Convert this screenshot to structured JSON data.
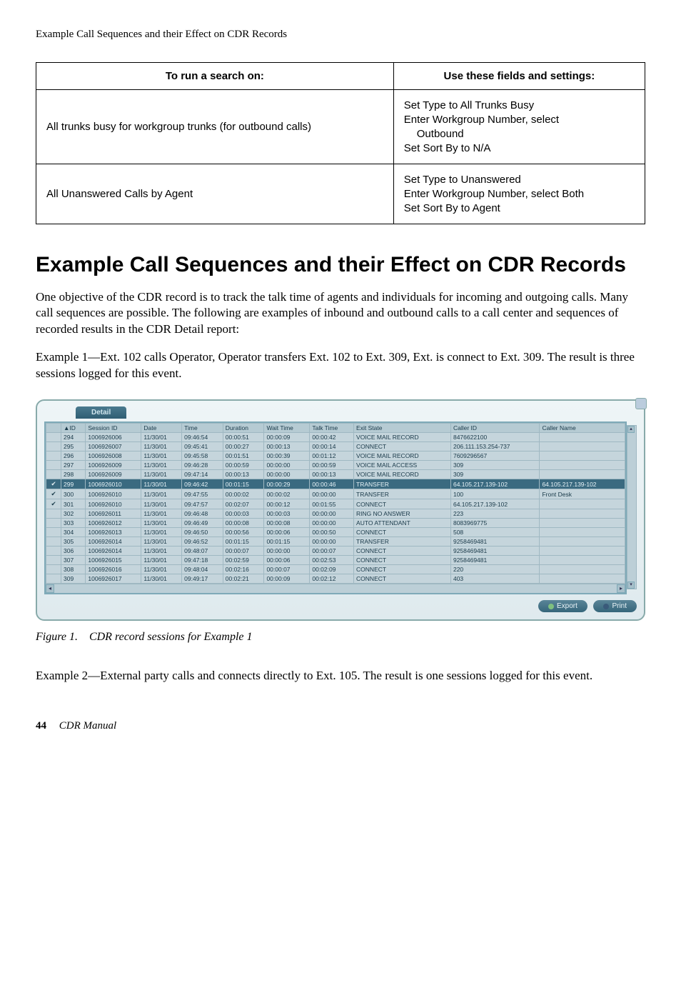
{
  "running_head": "Example Call Sequences and their Effect on CDR Records",
  "settings_table": {
    "headers": [
      "To run a search on:",
      "Use these fields and settings:"
    ],
    "rows": [
      {
        "c1": "All trunks busy for workgroup trunks (for outbound calls)",
        "c2_lines": [
          {
            "t": "Set Type to All Trunks Busy",
            "indent": false
          },
          {
            "t": "Enter Workgroup Number, select",
            "indent": false
          },
          {
            "t": "Outbound",
            "indent": true
          },
          {
            "t": "Set Sort By to N/A",
            "indent": false
          }
        ]
      },
      {
        "c1": "All Unanswered Calls by Agent",
        "c2_lines": [
          {
            "t": "Set Type to Unanswered",
            "indent": false
          },
          {
            "t": "Enter Workgroup Number, select Both",
            "indent": false
          },
          {
            "t": "Set Sort By to Agent",
            "indent": false
          }
        ]
      }
    ]
  },
  "section_title": "Example Call Sequences and their Effect on CDR Records",
  "para1": "One objective of the CDR record is to track the talk time of agents and individuals for incoming and outgoing calls. Many call sequences are possible. The following are examples of inbound and outbound calls to a call center and sequences of recorded results in the CDR Detail report:",
  "para2": "Example 1—Ext. 102 calls Operator, Operator transfers Ext. 102 to Ext. 309, Ext. is connect to Ext. 309. The result is three sessions logged for this event.",
  "detail": {
    "tab": "Detail",
    "export": "Export",
    "print": "Print",
    "cols": [
      "",
      "▲ID",
      "Session ID",
      "Date",
      "Time",
      "Duration",
      "Wait Time",
      "Talk Time",
      "Exit State",
      "Caller ID",
      "Caller Name"
    ],
    "rows": [
      {
        "chk": "",
        "id": "294",
        "sid": "1006926006",
        "date": "11/30/01",
        "time": "09:46:54",
        "dur": "00:00:51",
        "wait": "00:00:09",
        "talk": "00:00:42",
        "exit": "VOICE MAIL RECORD",
        "cid": "8476622100",
        "cname": "",
        "hl": false
      },
      {
        "chk": "",
        "id": "295",
        "sid": "1006926007",
        "date": "11/30/01",
        "time": "09:45:41",
        "dur": "00:00:27",
        "wait": "00:00:13",
        "talk": "00:00:14",
        "exit": "CONNECT",
        "cid": "206.111.153.254-737",
        "cname": "",
        "hl": false
      },
      {
        "chk": "",
        "id": "296",
        "sid": "1006926008",
        "date": "11/30/01",
        "time": "09:45:58",
        "dur": "00:01:51",
        "wait": "00:00:39",
        "talk": "00:01:12",
        "exit": "VOICE MAIL RECORD",
        "cid": "7609296567",
        "cname": "",
        "hl": false
      },
      {
        "chk": "",
        "id": "297",
        "sid": "1006926009",
        "date": "11/30/01",
        "time": "09:46:28",
        "dur": "00:00:59",
        "wait": "00:00:00",
        "talk": "00:00:59",
        "exit": "VOICE MAIL ACCESS",
        "cid": "309",
        "cname": "",
        "hl": false
      },
      {
        "chk": "",
        "id": "298",
        "sid": "1006926009",
        "date": "11/30/01",
        "time": "09:47:14",
        "dur": "00:00:13",
        "wait": "00:00:00",
        "talk": "00:00:13",
        "exit": "VOICE MAIL RECORD",
        "cid": "309",
        "cname": "",
        "hl": false
      },
      {
        "chk": "✔",
        "id": "299",
        "sid": "1006926010",
        "date": "11/30/01",
        "time": "09:46:42",
        "dur": "00:01:15",
        "wait": "00:00:29",
        "talk": "00:00:46",
        "exit": "TRANSFER",
        "cid": "64.105.217.139-102",
        "cname": "64.105.217.139-102",
        "hl": true,
        "ht": true
      },
      {
        "chk": "✔",
        "id": "300",
        "sid": "1006926010",
        "date": "11/30/01",
        "time": "09:47:55",
        "dur": "00:00:02",
        "wait": "00:00:02",
        "talk": "00:00:00",
        "exit": "TRANSFER",
        "cid": "100",
        "cname": "Front Desk",
        "hl": false
      },
      {
        "chk": "✔",
        "id": "301",
        "sid": "1006926010",
        "date": "11/30/01",
        "time": "09:47:57",
        "dur": "00:02:07",
        "wait": "00:00:12",
        "talk": "00:01:55",
        "exit": "CONNECT",
        "cid": "64.105.217.139-102",
        "cname": "",
        "hl": false,
        "hb": true
      },
      {
        "chk": "",
        "id": "302",
        "sid": "1006926011",
        "date": "11/30/01",
        "time": "09:46:48",
        "dur": "00:00:03",
        "wait": "00:00:03",
        "talk": "00:00:00",
        "exit": "RING NO ANSWER",
        "cid": "223",
        "cname": "",
        "hl": false
      },
      {
        "chk": "",
        "id": "303",
        "sid": "1006926012",
        "date": "11/30/01",
        "time": "09:46:49",
        "dur": "00:00:08",
        "wait": "00:00:08",
        "talk": "00:00:00",
        "exit": "AUTO ATTENDANT",
        "cid": "8083969775",
        "cname": "",
        "hl": false
      },
      {
        "chk": "",
        "id": "304",
        "sid": "1006926013",
        "date": "11/30/01",
        "time": "09:46:50",
        "dur": "00:00:56",
        "wait": "00:00:06",
        "talk": "00:00:50",
        "exit": "CONNECT",
        "cid": "508",
        "cname": "",
        "hl": false
      },
      {
        "chk": "",
        "id": "305",
        "sid": "1006926014",
        "date": "11/30/01",
        "time": "09:46:52",
        "dur": "00:01:15",
        "wait": "00:01:15",
        "talk": "00:00:00",
        "exit": "TRANSFER",
        "cid": "9258469481",
        "cname": "",
        "hl": false
      },
      {
        "chk": "",
        "id": "306",
        "sid": "1006926014",
        "date": "11/30/01",
        "time": "09:48:07",
        "dur": "00:00:07",
        "wait": "00:00:00",
        "talk": "00:00:07",
        "exit": "CONNECT",
        "cid": "9258469481",
        "cname": "",
        "hl": false
      },
      {
        "chk": "",
        "id": "307",
        "sid": "1006926015",
        "date": "11/30/01",
        "time": "09:47:18",
        "dur": "00:02:59",
        "wait": "00:00:06",
        "talk": "00:02:53",
        "exit": "CONNECT",
        "cid": "9258469481",
        "cname": "",
        "hl": false
      },
      {
        "chk": "",
        "id": "308",
        "sid": "1006926016",
        "date": "11/30/01",
        "time": "09:48:04",
        "dur": "00:02:16",
        "wait": "00:00:07",
        "talk": "00:02:09",
        "exit": "CONNECT",
        "cid": "220",
        "cname": "",
        "hl": false
      },
      {
        "chk": "",
        "id": "309",
        "sid": "1006926017",
        "date": "11/30/01",
        "time": "09:49:17",
        "dur": "00:02:21",
        "wait": "00:00:09",
        "talk": "00:02:12",
        "exit": "CONNECT",
        "cid": "403",
        "cname": "",
        "hl": false
      }
    ]
  },
  "fig_caption_label": "Figure 1.",
  "fig_caption_text": "CDR record sessions for Example 1",
  "para3": "Example 2—External party calls and connects directly to Ext. 105. The result is one sessions logged for this event.",
  "page_num": "44",
  "book": "CDR Manual"
}
